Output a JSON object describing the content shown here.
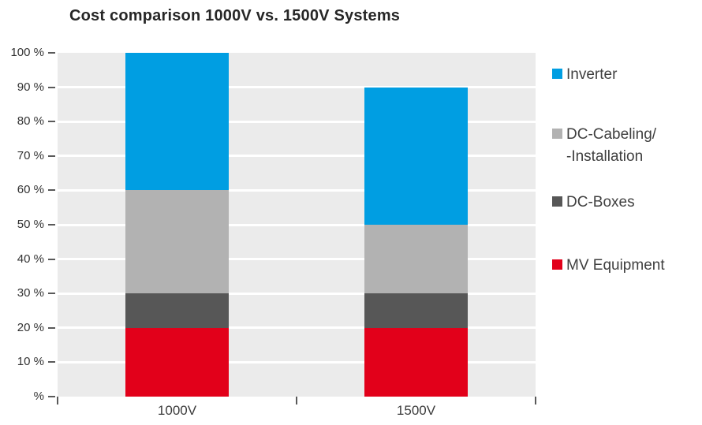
{
  "title": "Cost comparison 1000V vs. 1500V Systems",
  "chart_data": {
    "type": "bar",
    "stacked": true,
    "title": "Cost comparison 1000V vs. 1500V Systems",
    "categories": [
      "1000V",
      "1500V"
    ],
    "series": [
      {
        "name": "MV Equipment",
        "color": "#E2001A",
        "values": [
          20,
          20
        ]
      },
      {
        "name": "DC-Boxes",
        "color": "#575757",
        "values": [
          10,
          10
        ]
      },
      {
        "name": "DC-Cabeling/-Installation",
        "color": "#B2B2B2",
        "values": [
          30,
          20
        ]
      },
      {
        "name": "Inverter",
        "color": "#009EE2",
        "values": [
          40,
          40
        ]
      }
    ],
    "totals": [
      100,
      90
    ],
    "ylim": [
      0,
      100
    ],
    "y_tick_step": 10,
    "y_tick_labels": [
      "100 %",
      "90 %",
      "80 %",
      "70 %",
      "60 %",
      "50 %",
      "40 %",
      "30 %",
      "20 %",
      "10 %",
      "%"
    ],
    "grid": "horizontal",
    "grid_color": "#FFFFFF",
    "plot_background": "#EBEBEB",
    "legend_position": "right",
    "legend": [
      {
        "name": "Inverter",
        "lines": [
          "Inverter"
        ],
        "color": "#009EE2"
      },
      {
        "name": "DC-Cabeling/-Installation",
        "lines": [
          "DC-Cabeling/",
          "-Installation"
        ],
        "color": "#B2B2B2"
      },
      {
        "name": "DC-Boxes",
        "lines": [
          "DC-Boxes"
        ],
        "color": "#575757"
      },
      {
        "name": "MV Equipment",
        "lines": [
          "MV Equipment"
        ],
        "color": "#E2001A"
      }
    ]
  }
}
